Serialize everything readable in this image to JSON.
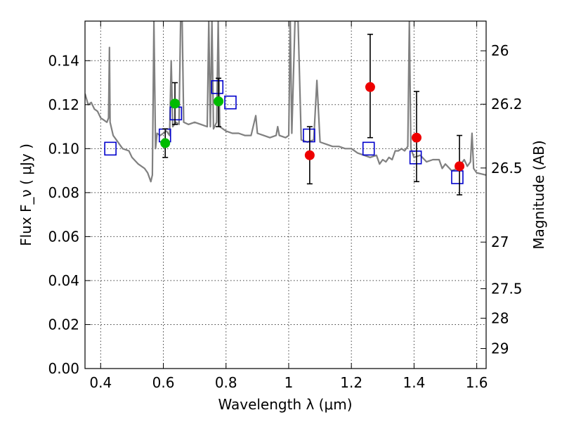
{
  "chart_data": {
    "type": "scatter",
    "xlabel": "Wavelength  λ (μm)",
    "ylabel": "Flux  F_ν  ( μJy )",
    "ylabel_right": "Magnitude (AB)",
    "xlim": [
      0.35,
      1.63
    ],
    "ylim": [
      0.0,
      0.158
    ],
    "grid": true,
    "x_ticks": [
      0.4,
      0.6,
      0.8,
      1.0,
      1.2,
      1.4,
      1.6
    ],
    "x_tick_labels": [
      "0.4",
      "0.6",
      "0.8",
      "1",
      "1.2",
      "1.4",
      "1.6"
    ],
    "y_ticks": [
      0.0,
      0.02,
      0.04,
      0.06,
      0.08,
      0.1,
      0.12,
      0.14
    ],
    "y_tick_labels": [
      "0.00",
      "0.02",
      "0.04",
      "0.06",
      "0.08",
      "0.10",
      "0.12",
      "0.14"
    ],
    "right_ticks": [
      {
        "flux": 0.1445,
        "label": "26"
      },
      {
        "flux": 0.1202,
        "label": "26.2"
      },
      {
        "flux": 0.0912,
        "label": "26.5"
      },
      {
        "flux": 0.0575,
        "label": "27"
      },
      {
        "flux": 0.0363,
        "label": "27.5"
      },
      {
        "flux": 0.0229,
        "label": "28"
      },
      {
        "flux": 0.0091,
        "label": "29"
      }
    ],
    "series": [
      {
        "type": "line",
        "color": "#808080",
        "points": [
          [
            0.35,
            0.125
          ],
          [
            0.36,
            0.12
          ],
          [
            0.37,
            0.121
          ],
          [
            0.38,
            0.118
          ],
          [
            0.39,
            0.117
          ],
          [
            0.4,
            0.114
          ],
          [
            0.41,
            0.113
          ],
          [
            0.42,
            0.112
          ],
          [
            0.425,
            0.114
          ],
          [
            0.428,
            0.146
          ],
          [
            0.43,
            0.112
          ],
          [
            0.44,
            0.106
          ],
          [
            0.45,
            0.104
          ],
          [
            0.47,
            0.1
          ],
          [
            0.49,
            0.099
          ],
          [
            0.5,
            0.096
          ],
          [
            0.52,
            0.093
          ],
          [
            0.54,
            0.091
          ],
          [
            0.55,
            0.089
          ],
          [
            0.56,
            0.085
          ],
          [
            0.565,
            0.088
          ],
          [
            0.57,
            0.158
          ],
          [
            0.575,
            0.1
          ],
          [
            0.58,
            0.107
          ],
          [
            0.59,
            0.106
          ],
          [
            0.6,
            0.107
          ],
          [
            0.61,
            0.108
          ],
          [
            0.62,
            0.106
          ],
          [
            0.625,
            0.14
          ],
          [
            0.63,
            0.11
          ],
          [
            0.64,
            0.112
          ],
          [
            0.65,
            0.111
          ],
          [
            0.655,
            0.158
          ],
          [
            0.66,
            0.158
          ],
          [
            0.665,
            0.112
          ],
          [
            0.68,
            0.111
          ],
          [
            0.7,
            0.112
          ],
          [
            0.72,
            0.111
          ],
          [
            0.74,
            0.11
          ],
          [
            0.745,
            0.158
          ],
          [
            0.75,
            0.11
          ],
          [
            0.755,
            0.158
          ],
          [
            0.76,
            0.109
          ],
          [
            0.77,
            0.112
          ],
          [
            0.775,
            0.158
          ],
          [
            0.78,
            0.11
          ],
          [
            0.8,
            0.108
          ],
          [
            0.82,
            0.107
          ],
          [
            0.84,
            0.107
          ],
          [
            0.86,
            0.106
          ],
          [
            0.88,
            0.106
          ],
          [
            0.895,
            0.115
          ],
          [
            0.9,
            0.107
          ],
          [
            0.92,
            0.106
          ],
          [
            0.94,
            0.105
          ],
          [
            0.96,
            0.106
          ],
          [
            0.965,
            0.11
          ],
          [
            0.97,
            0.106
          ],
          [
            0.99,
            0.105
          ],
          [
            1.0,
            0.106
          ],
          [
            1.005,
            0.158
          ],
          [
            1.01,
            0.107
          ],
          [
            1.02,
            0.158
          ],
          [
            1.03,
            0.158
          ],
          [
            1.04,
            0.104
          ],
          [
            1.06,
            0.103
          ],
          [
            1.08,
            0.104
          ],
          [
            1.09,
            0.131
          ],
          [
            1.1,
            0.103
          ],
          [
            1.12,
            0.102
          ],
          [
            1.14,
            0.101
          ],
          [
            1.16,
            0.101
          ],
          [
            1.18,
            0.1
          ],
          [
            1.2,
            0.1
          ],
          [
            1.22,
            0.098
          ],
          [
            1.24,
            0.097
          ],
          [
            1.26,
            0.096
          ],
          [
            1.28,
            0.097
          ],
          [
            1.29,
            0.093
          ],
          [
            1.3,
            0.095
          ],
          [
            1.31,
            0.094
          ],
          [
            1.32,
            0.096
          ],
          [
            1.33,
            0.095
          ],
          [
            1.34,
            0.099
          ],
          [
            1.35,
            0.099
          ],
          [
            1.36,
            0.1
          ],
          [
            1.37,
            0.099
          ],
          [
            1.38,
            0.101
          ],
          [
            1.385,
            0.158
          ],
          [
            1.39,
            0.1
          ],
          [
            1.4,
            0.096
          ],
          [
            1.42,
            0.097
          ],
          [
            1.44,
            0.094
          ],
          [
            1.46,
            0.095
          ],
          [
            1.48,
            0.095
          ],
          [
            1.49,
            0.091
          ],
          [
            1.5,
            0.093
          ],
          [
            1.52,
            0.09
          ],
          [
            1.54,
            0.091
          ],
          [
            1.55,
            0.093
          ],
          [
            1.56,
            0.095
          ],
          [
            1.57,
            0.092
          ],
          [
            1.58,
            0.094
          ],
          [
            1.585,
            0.107
          ],
          [
            1.59,
            0.091
          ],
          [
            1.6,
            0.089
          ],
          [
            1.63,
            0.088
          ]
        ]
      },
      {
        "type": "scatter",
        "marker": "square-open",
        "color": "#0000cc",
        "points": [
          [
            0.431,
            0.1
          ],
          [
            0.605,
            0.106
          ],
          [
            0.64,
            0.116
          ],
          [
            0.772,
            0.128
          ],
          [
            0.814,
            0.121
          ],
          [
            1.065,
            0.106
          ],
          [
            1.255,
            0.1
          ],
          [
            1.405,
            0.096
          ],
          [
            1.538,
            0.087
          ]
        ]
      },
      {
        "type": "scatter",
        "marker": "circle",
        "color": "#00bb00",
        "points": [
          [
            0.606,
            0.1025
          ],
          [
            0.637,
            0.1205
          ],
          [
            0.776,
            0.1215
          ]
        ]
      },
      {
        "type": "scatter",
        "marker": "circle",
        "color": "#ee0000",
        "points": [
          [
            1.067,
            0.097
          ],
          [
            1.26,
            0.128
          ],
          [
            1.408,
            0.105
          ],
          [
            1.545,
            0.092
          ]
        ]
      },
      {
        "type": "errorbars",
        "color": "#000000",
        "bars": [
          {
            "x": 0.606,
            "low": 0.096,
            "high": 0.109
          },
          {
            "x": 0.637,
            "low": 0.111,
            "high": 0.13
          },
          {
            "x": 0.776,
            "low": 0.11,
            "high": 0.132
          },
          {
            "x": 1.067,
            "low": 0.084,
            "high": 0.11
          },
          {
            "x": 1.26,
            "low": 0.105,
            "high": 0.152
          },
          {
            "x": 1.408,
            "low": 0.085,
            "high": 0.126
          },
          {
            "x": 1.545,
            "low": 0.079,
            "high": 0.106
          }
        ]
      }
    ]
  }
}
